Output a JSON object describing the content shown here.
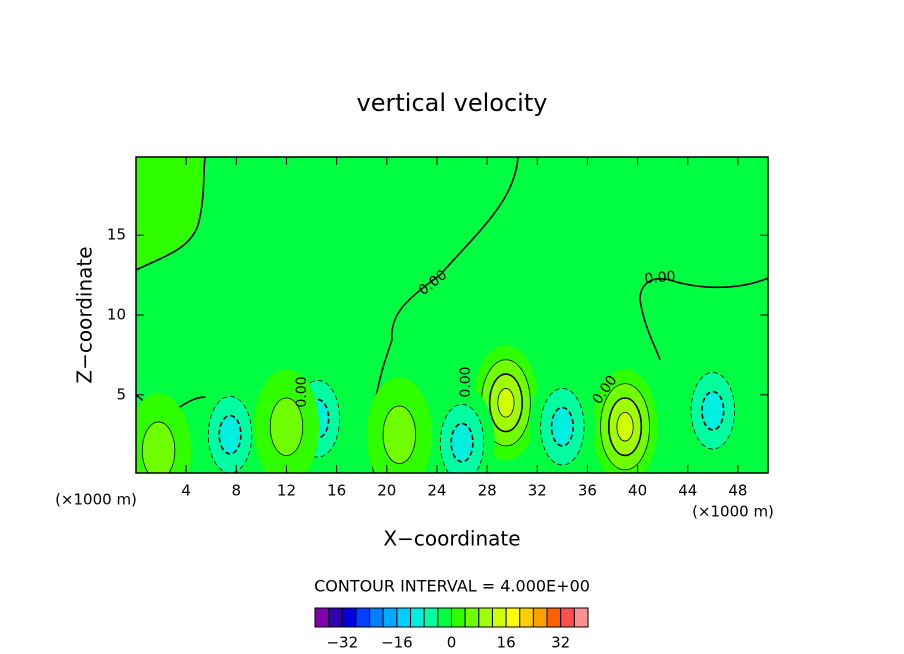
{
  "chart_data": {
    "type": "contour",
    "title": "vertical velocity",
    "xlabel": "X−coordinate",
    "ylabel": "Z−coordinate",
    "x_unit_labels": [
      "(×1000 m)",
      "(×1000 m)"
    ],
    "xlim": [
      0,
      50.4
    ],
    "xticks": [
      4,
      8,
      12,
      16,
      20,
      24,
      28,
      32,
      36,
      40,
      44,
      48
    ],
    "ylim": [
      0.1,
      19.9
    ],
    "yticks": [
      5,
      10,
      15
    ],
    "contour_interval_label": "CONTOUR INTERVAL = 4.000E+00",
    "contour_interval": 4,
    "contour_labels": [
      "0.00",
      "0.00",
      "0.00",
      "0.00",
      "0.00"
    ],
    "extrema": [
      {
        "x": 29.5,
        "z": 4.5,
        "value": 14
      },
      {
        "x": 39,
        "z": 3,
        "value": 14
      },
      {
        "x": 34,
        "z": 3,
        "value": -10
      },
      {
        "x": 46,
        "z": 4,
        "value": -10
      },
      {
        "x": 14.5,
        "z": 3.5,
        "value": -8
      },
      {
        "x": 7.5,
        "z": 2.5,
        "value": -8
      },
      {
        "x": 26,
        "z": 2,
        "value": -8
      },
      {
        "x": 21,
        "z": 2.5,
        "value": 6
      },
      {
        "x": 12,
        "z": 3,
        "value": 6
      },
      {
        "x": 1.8,
        "z": 1.5,
        "value": 6
      }
    ],
    "colorbar": {
      "levels": [
        -40,
        -36,
        -32,
        -28,
        -24,
        -20,
        -16,
        -12,
        -8,
        -4,
        0,
        4,
        8,
        12,
        16,
        20,
        24,
        28,
        32,
        36,
        40
      ],
      "colors": [
        "#8000b0",
        "#3000b0",
        "#0000e0",
        "#0040ff",
        "#0080ff",
        "#00a8ff",
        "#00d0ff",
        "#00f0e0",
        "#00ffa0",
        "#00ff40",
        "#30ff00",
        "#70ff00",
        "#a0ff00",
        "#d0ff00",
        "#ffff00",
        "#ffd000",
        "#ffa000",
        "#ff6000",
        "#ff5050",
        "#ff9090"
      ],
      "ticks": [
        {
          "value": -32,
          "label": "−32"
        },
        {
          "value": -16,
          "label": "−16"
        },
        0,
        16,
        32
      ]
    }
  }
}
